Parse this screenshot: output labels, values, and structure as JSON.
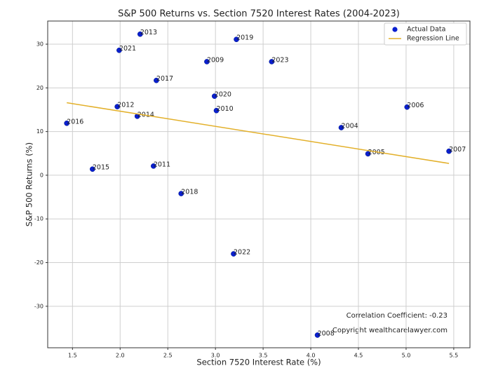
{
  "chart_data": {
    "type": "scatter",
    "title": "S&P 500 Returns vs. Section 7520 Interest Rates (2004-2023)",
    "x_label": "Section 7520 Interest Rate (%)",
    "y_label": "S&P 500 Returns (%)",
    "xlim": [
      1.24,
      5.67
    ],
    "ylim": [
      -39.5,
      35.3
    ],
    "xticks": [
      {
        "value": 1.5,
        "label": "1.5"
      },
      {
        "value": 2.0,
        "label": "2.0"
      },
      {
        "value": 2.5,
        "label": "2.5"
      },
      {
        "value": 3.0,
        "label": "3.0"
      },
      {
        "value": 3.5,
        "label": "3.5"
      },
      {
        "value": 4.0,
        "label": "4.0"
      },
      {
        "value": 4.5,
        "label": "4.5"
      },
      {
        "value": 5.0,
        "label": "5.0"
      },
      {
        "value": 5.5,
        "label": "5.5"
      }
    ],
    "yticks": [
      -30,
      -20,
      -10,
      0,
      10,
      20,
      30
    ],
    "grid": true,
    "legend": "upper right",
    "series": [
      {
        "name": "Actual Data",
        "type": "scatter",
        "color": "#0a1fd0",
        "labels": [
          "2004",
          "2005",
          "2006",
          "2007",
          "2008",
          "2009",
          "2010",
          "2011",
          "2012",
          "2013",
          "2014",
          "2015",
          "2016",
          "2017",
          "2018",
          "2019",
          "2020",
          "2021",
          "2022",
          "2023"
        ],
        "x": [
          4.32,
          4.6,
          5.01,
          5.45,
          4.07,
          2.91,
          3.01,
          2.35,
          1.97,
          2.21,
          2.18,
          1.71,
          1.44,
          2.38,
          2.64,
          3.22,
          2.99,
          1.99,
          3.19,
          3.59
        ],
        "values": [
          10.9,
          4.9,
          15.6,
          5.5,
          -36.6,
          26.0,
          14.8,
          2.1,
          15.7,
          32.3,
          13.5,
          1.4,
          11.9,
          21.7,
          -4.2,
          31.1,
          18.1,
          28.6,
          -18.0,
          26.0
        ]
      },
      {
        "name": "Regression Line",
        "type": "line",
        "color": "#e3b02a",
        "x": [
          1.44,
          5.45
        ],
        "values": [
          16.6,
          2.7
        ]
      }
    ],
    "annotations": [
      "Correlation Coefficient: -0.23",
      "Copyright wealthcarelawyer.com"
    ]
  }
}
